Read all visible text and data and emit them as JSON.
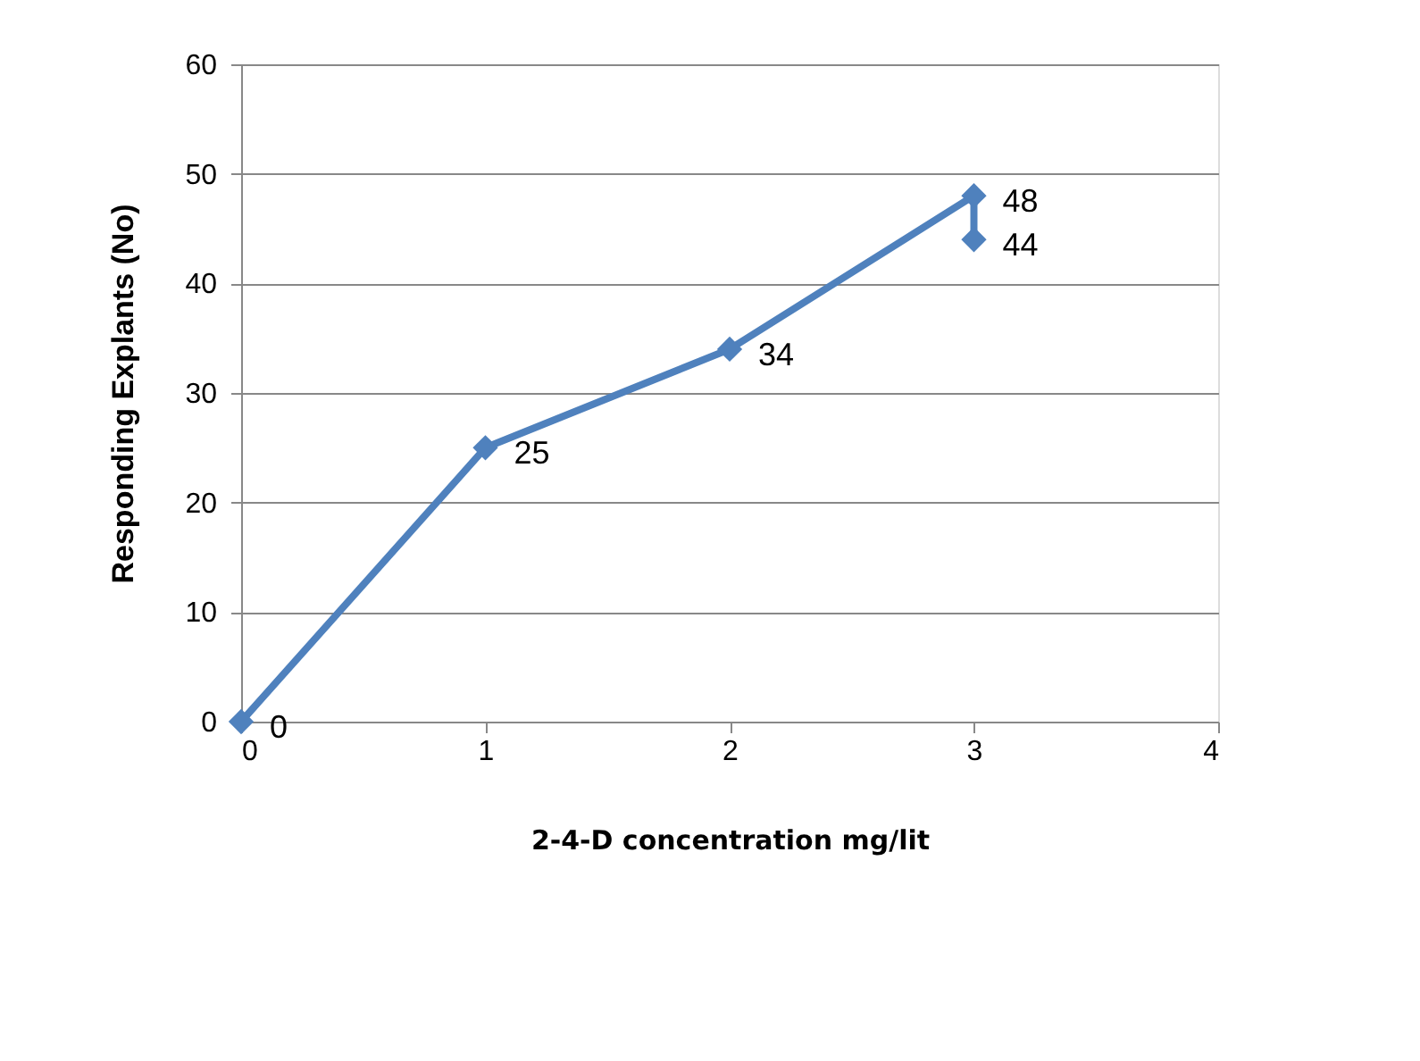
{
  "chart_data": {
    "type": "line",
    "xlabel": "2-4-D concentration mg/lit",
    "ylabel": "Responding Explants (No)",
    "x": [
      0,
      1,
      2,
      3,
      3
    ],
    "series": [
      {
        "color": "#4f81bd",
        "values": [
          0,
          25,
          34,
          48,
          44
        ]
      }
    ],
    "xlim": [
      0,
      4
    ],
    "xticks": [
      0,
      1,
      2,
      3,
      4
    ],
    "ylim": [
      0,
      60
    ],
    "yticks": [
      0,
      10,
      20,
      30,
      40,
      50,
      60
    ],
    "grid": "y",
    "marker": "diamond",
    "line_style": "solid",
    "data_labels": true
  }
}
